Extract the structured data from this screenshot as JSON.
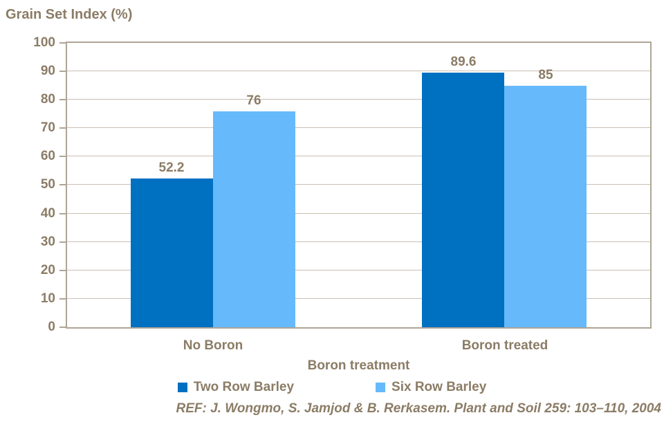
{
  "title": "Grain Set Index (%)",
  "colors": {
    "text": "#8B7C66",
    "gridline": "#C8BFB2",
    "axis_border": "#AFA497",
    "series_two_row": "#0070C0",
    "series_six_row": "#66BAFC",
    "background": "#FFFFFF"
  },
  "chart_data": {
    "type": "bar",
    "title": "Grain Set Index (%)",
    "xlabel": "Boron treatment",
    "ylabel": "Grain Set Index (%)",
    "categories": [
      "No Boron",
      "Boron treated"
    ],
    "series": [
      {
        "name": "Two Row Barley",
        "color": "#0070C0",
        "values": [
          52.2,
          89.6
        ],
        "labels": [
          "52.2",
          "89.6"
        ]
      },
      {
        "name": "Six Row Barley",
        "color": "#66BAFC",
        "values": [
          76,
          85
        ],
        "labels": [
          "76",
          "85"
        ]
      }
    ],
    "ylim": [
      0,
      100
    ],
    "ytick_step": 10,
    "ytick_labels": [
      "0",
      "10",
      "20",
      "30",
      "40",
      "50",
      "60",
      "70",
      "80",
      "90",
      "100"
    ],
    "grid": true,
    "legend_position": "bottom"
  },
  "footer": "REF: J. Wongmo, S. Jamjod & B. Rerkasem. Plant and Soil 259: 103–110, 2004"
}
